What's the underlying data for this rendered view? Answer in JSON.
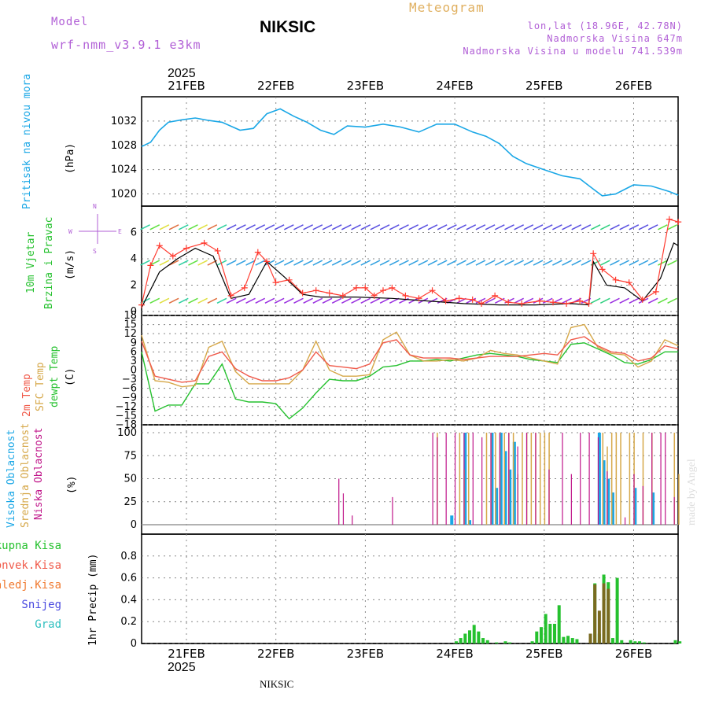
{
  "header": {
    "model_label": "Model",
    "model_name": "wrf-nmm_v3.9.1 e3km",
    "station_title": "NIKSIC",
    "meteogram_label": "Meteogram",
    "coords": "lon,lat (18.96E, 42.78N)",
    "altitude": "Nadmorska Visina 647m",
    "model_altitude": "Nadmorska Visina u modelu 741.539m",
    "year_top": "2025",
    "year_bottom": "2025",
    "footer_station": "NIKSIC",
    "watermark": "made by Angel"
  },
  "colors": {
    "pressure": "#1aa7e6",
    "temp": "#f05a4a",
    "sfc": "#d6a84a",
    "dew": "#25c12e",
    "wind_gust": "#ff3b30",
    "wind_mean": "#000000",
    "high_cloud": "#1aa7e6",
    "mid_cloud": "#d6a84a",
    "low_cloud": "#c0168a",
    "precip": "#25c12e",
    "snow": "#7a6a20"
  },
  "panels": {
    "pressure": {
      "ylabel": "Pritisak na nivou mora",
      "unit": "(hPa)"
    },
    "wind": {
      "ylabel1": "10m Vjetar",
      "ylabel2": "Brzina i Pravac",
      "unit": "(m/s)",
      "compass_n": "N",
      "compass_e": "E",
      "compass_w": "W",
      "compass_s": "S"
    },
    "temp": {
      "ylabel1": "2m Temp",
      "ylabel2": "SFC Temp",
      "ylabel3": "dewpt Temp",
      "unit": "(C)"
    },
    "cloud": {
      "ylabel1": "Visoka Oblacnost",
      "ylabel2": "Srednja Oblacnost",
      "ylabel3": "Niska Oblacnost",
      "unit": "(%)"
    },
    "precip": {
      "legend": [
        "Ukupna Kisa",
        "Konvek.Kisa",
        "Zaledj.Kisa",
        "Snijeg",
        "Grad"
      ],
      "unit": "1hr Precip (mm)"
    }
  },
  "chart_data": {
    "type": "line",
    "title": "Meteogram NIKSIC",
    "x_ticks": [
      "21FEB",
      "22FEB",
      "23FEB",
      "24FEB",
      "25FEB",
      "26FEB"
    ],
    "x_range_days": [
      0,
      6
    ],
    "pressure": {
      "ylim": [
        1018,
        1036
      ],
      "yticks": [
        1020,
        1024,
        1028,
        1032
      ],
      "x": [
        0,
        0.1,
        0.2,
        0.3,
        0.45,
        0.6,
        0.75,
        0.9,
        1.1,
        1.25,
        1.4,
        1.55,
        1.7,
        1.85,
        2.0,
        2.15,
        2.3,
        2.5,
        2.7,
        2.9,
        3.1,
        3.3,
        3.5,
        3.7,
        3.85,
        4.0,
        4.15,
        4.3,
        4.5,
        4.7,
        4.9,
        5.05,
        5.15,
        5.3,
        5.5,
        5.7,
        5.9,
        6.0
      ],
      "y": [
        1027.8,
        1028.5,
        1030.5,
        1031.8,
        1032.2,
        1032.5,
        1032.1,
        1031.8,
        1030.5,
        1030.8,
        1033.2,
        1034.0,
        1032.8,
        1031.8,
        1030.5,
        1029.8,
        1031.2,
        1031.0,
        1031.5,
        1031.0,
        1030.2,
        1031.5,
        1031.5,
        1030.2,
        1029.5,
        1028.3,
        1026.2,
        1025.0,
        1024.0,
        1023.0,
        1022.5,
        1020.8,
        1019.7,
        1020.0,
        1021.5,
        1021.3,
        1020.4,
        1019.8
      ]
    },
    "wind": {
      "ylim": [
        0,
        8
      ],
      "yticks": [
        0,
        2,
        4,
        6
      ],
      "gust_x": [
        0,
        0.1,
        0.2,
        0.35,
        0.5,
        0.7,
        0.85,
        1.0,
        1.15,
        1.3,
        1.4,
        1.5,
        1.65,
        1.8,
        1.95,
        2.1,
        2.25,
        2.4,
        2.5,
        2.6,
        2.7,
        2.8,
        2.95,
        3.1,
        3.25,
        3.4,
        3.55,
        3.7,
        3.8,
        3.95,
        4.1,
        4.25,
        4.45,
        4.6,
        4.75,
        4.9,
        5.0,
        5.05,
        5.15,
        5.3,
        5.45,
        5.6,
        5.75,
        5.9,
        6.0
      ],
      "gust_y": [
        0.5,
        3.5,
        5.0,
        4.2,
        4.8,
        5.2,
        4.6,
        1.2,
        1.8,
        4.5,
        3.8,
        2.2,
        2.4,
        1.4,
        1.6,
        1.4,
        1.2,
        1.8,
        1.8,
        1.2,
        1.6,
        1.8,
        1.2,
        1.0,
        1.6,
        0.8,
        1.0,
        0.9,
        0.6,
        1.2,
        0.7,
        0.6,
        0.8,
        0.7,
        0.6,
        0.8,
        0.6,
        4.4,
        3.2,
        2.4,
        2.2,
        0.9,
        1.5,
        7.0,
        6.8
      ],
      "mean_x": [
        0,
        0.2,
        0.4,
        0.6,
        0.8,
        1.0,
        1.2,
        1.4,
        1.6,
        1.8,
        2.0,
        2.4,
        2.8,
        3.2,
        3.6,
        4.0,
        4.4,
        4.8,
        5.0,
        5.05,
        5.2,
        5.4,
        5.6,
        5.8,
        5.95,
        6.0
      ],
      "mean_y": [
        0.3,
        3.0,
        4.0,
        4.8,
        4.2,
        1.0,
        1.3,
        3.8,
        2.6,
        1.3,
        1.1,
        1.1,
        1.0,
        0.8,
        0.6,
        0.5,
        0.5,
        0.6,
        0.5,
        3.8,
        2.0,
        1.8,
        0.8,
        2.5,
        5.2,
        5.0
      ]
    },
    "temperature": {
      "ylim": [
        -18,
        18
      ],
      "yticks": [
        -18,
        -15,
        -12,
        -9,
        -6,
        -3,
        0,
        3,
        6,
        9,
        12,
        15,
        18
      ],
      "x": [
        0,
        0.15,
        0.3,
        0.45,
        0.6,
        0.75,
        0.9,
        1.05,
        1.2,
        1.35,
        1.5,
        1.65,
        1.8,
        1.95,
        2.1,
        2.25,
        2.4,
        2.55,
        2.7,
        2.85,
        3.0,
        3.15,
        3.3,
        3.45,
        3.6,
        3.75,
        3.9,
        4.05,
        4.2,
        4.35,
        4.5,
        4.65,
        4.8,
        4.95,
        5.1,
        5.25,
        5.4,
        5.55,
        5.7,
        5.85,
        6.0
      ],
      "t2m": [
        9.5,
        -2.0,
        -3.0,
        -4.0,
        -3.5,
        4.5,
        6.0,
        0.5,
        -2.0,
        -3.5,
        -3.5,
        -2.5,
        0.0,
        6.0,
        1.5,
        1.0,
        0.5,
        2.0,
        9.0,
        10.0,
        5.0,
        4.0,
        4.0,
        4.0,
        3.5,
        4.0,
        4.5,
        4.5,
        4.5,
        5.0,
        5.5,
        5.0,
        10.0,
        11.0,
        8.0,
        6.0,
        5.5,
        3.0,
        4.0,
        8.0,
        7.0
      ],
      "tsfc": [
        11.5,
        -3.5,
        -4.0,
        -5.5,
        -5.0,
        7.5,
        9.5,
        -0.5,
        -4.5,
        -4.5,
        -4.5,
        -4.5,
        0.0,
        9.5,
        0.0,
        -2.0,
        -2.0,
        -1.5,
        10.0,
        12.5,
        5.0,
        3.0,
        3.0,
        3.5,
        3.0,
        4.0,
        6.5,
        5.5,
        5.0,
        4.0,
        3.0,
        2.0,
        14.0,
        15.0,
        7.5,
        5.5,
        5.0,
        1.0,
        3.0,
        10.0,
        8.0
      ],
      "dewpt": [
        6.0,
        -13.5,
        -11.5,
        -11.5,
        -4.5,
        -4.5,
        2.0,
        -9.5,
        -10.5,
        -10.5,
        -11.0,
        -16.0,
        -12.5,
        -7.5,
        -3.0,
        -3.5,
        -3.5,
        -2.0,
        1.0,
        1.5,
        3.0,
        3.0,
        3.5,
        3.0,
        4.0,
        5.0,
        5.5,
        5.0,
        4.5,
        3.5,
        3.0,
        2.5,
        8.5,
        9.0,
        7.0,
        5.0,
        2.5,
        2.0,
        3.5,
        6.0,
        6.0
      ]
    },
    "cloud": {
      "ylim": [
        0,
        100
      ],
      "yticks": [
        0,
        25,
        50,
        75,
        100
      ],
      "low_x": [
        2.2,
        2.25,
        2.35,
        2.8,
        3.25,
        3.3,
        3.4,
        3.5,
        3.6,
        3.7,
        3.8,
        3.9,
        4.0,
        4.1,
        4.2,
        4.3,
        4.4,
        4.55,
        4.7,
        4.8,
        4.9,
        5.0,
        5.1,
        5.2,
        5.4,
        5.5,
        5.6,
        5.7,
        5.8,
        5.85,
        5.95
      ],
      "low_y": [
        50,
        34,
        10,
        30,
        100,
        95,
        100,
        100,
        100,
        100,
        95,
        100,
        100,
        100,
        85,
        100,
        100,
        60,
        100,
        55,
        100,
        100,
        95,
        58,
        8,
        55,
        42,
        100,
        100,
        100,
        30
      ],
      "mid_x": [
        3.3,
        3.55,
        3.6,
        3.65,
        3.85,
        3.9,
        3.95,
        4.0,
        4.05,
        4.1,
        4.15,
        4.2,
        4.25,
        4.3,
        4.35,
        4.4,
        4.45,
        4.5,
        4.55,
        5.15,
        5.2,
        5.25,
        5.3,
        5.35,
        5.45,
        5.5,
        5.6,
        5.7,
        5.95,
        6.0
      ],
      "mid_y": [
        100,
        100,
        60,
        100,
        100,
        100,
        100,
        100,
        100,
        100,
        100,
        55,
        100,
        100,
        100,
        100,
        100,
        100,
        100,
        100,
        85,
        100,
        100,
        100,
        100,
        100,
        100,
        100,
        100,
        55
      ],
      "high_x": [
        3.45,
        3.6,
        3.65,
        3.9,
        3.95,
        4.0,
        4.05,
        4.1,
        4.15,
        5.1,
        5.15,
        5.2,
        5.25,
        5.5,
        5.7
      ],
      "high_y": [
        10,
        100,
        5,
        100,
        40,
        100,
        80,
        60,
        90,
        100,
        70,
        50,
        35,
        40,
        35
      ]
    },
    "precip": {
      "ylim": [
        0,
        1.0
      ],
      "yticks": [
        0,
        0.2,
        0.4,
        0.6,
        0.8
      ],
      "total_x": [
        3.5,
        3.55,
        3.6,
        3.65,
        3.7,
        3.75,
        3.8,
        3.85,
        3.95,
        4.05,
        4.1,
        4.35,
        4.4,
        4.45,
        4.5,
        4.55,
        4.6,
        4.65,
        4.7,
        4.75,
        4.8,
        4.85,
        5.0,
        5.05,
        5.1,
        5.15,
        5.2,
        5.25,
        5.3,
        5.35,
        5.45,
        5.5,
        5.55,
        5.6,
        5.95,
        6.0
      ],
      "total_y": [
        0.02,
        0.05,
        0.09,
        0.12,
        0.17,
        0.11,
        0.05,
        0.03,
        0.01,
        0.02,
        0.01,
        0.02,
        0.11,
        0.15,
        0.27,
        0.18,
        0.18,
        0.35,
        0.06,
        0.07,
        0.05,
        0.04,
        0.02,
        0.55,
        0.09,
        0.63,
        0.56,
        0.05,
        0.6,
        0.03,
        0.03,
        0.02,
        0.02,
        0.01,
        0.03,
        0.02
      ],
      "snow_x": [
        5.0,
        5.05,
        5.1,
        5.15,
        5.2
      ],
      "snow_y": [
        0.09,
        0.54,
        0.3,
        0.55,
        0.5
      ]
    }
  }
}
